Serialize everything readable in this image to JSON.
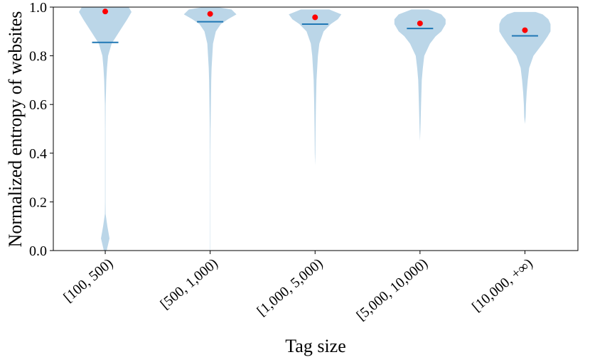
{
  "chart_data": {
    "type": "violin",
    "xlabel": "Tag size",
    "ylabel": "Normalized entropy of websites",
    "categories": [
      "[100, 500)",
      "[500, 1,000)",
      "[1,000, 5,000)",
      "[5,000, 10,000)",
      "[10,000, +∞)"
    ],
    "ylim": [
      0,
      1
    ],
    "yticks": [
      {
        "value": 0,
        "label": "0.0"
      },
      {
        "value": 0.2,
        "label": "0.2"
      },
      {
        "value": 0.4,
        "label": "0.4"
      },
      {
        "value": 0.6,
        "label": "0.6"
      },
      {
        "value": 0.8,
        "label": "0.8"
      },
      {
        "value": 1,
        "label": "1.0"
      }
    ],
    "body_color": "#1f77b4",
    "mean_color": "#1f77b4",
    "median_color": "#ff0000",
    "violins": [
      {
        "levels": [
          0,
          0.05,
          0.1,
          0.15,
          0.2,
          0.3,
          0.4,
          0.5,
          0.6,
          0.65,
          0.7,
          0.75,
          0.8,
          0.85,
          0.9,
          0.95,
          0.98,
          1.0
        ],
        "density": [
          2,
          6,
          3,
          0.5,
          0.3,
          0.3,
          0.3,
          0.3,
          0.5,
          1,
          1.5,
          2.5,
          4,
          9,
          20,
          31,
          37,
          33
        ],
        "mean": 0.855,
        "median": 0.982
      },
      {
        "levels": [
          0,
          0.2,
          0.4,
          0.5,
          0.6,
          0.7,
          0.75,
          0.8,
          0.85,
          0.9,
          0.93,
          0.95,
          0.97,
          0.99,
          1.0
        ],
        "density": [
          0.2,
          0.2,
          0.3,
          0.5,
          1,
          1.5,
          2,
          3,
          4,
          8,
          15,
          25,
          37,
          30,
          10
        ],
        "mean": 0.94,
        "median": 0.972
      },
      {
        "levels": [
          0.35,
          0.4,
          0.5,
          0.6,
          0.7,
          0.75,
          0.8,
          0.85,
          0.9,
          0.93,
          0.95,
          0.97,
          0.99
        ],
        "density": [
          0,
          0.4,
          0.7,
          1.2,
          2,
          3,
          4,
          6,
          12,
          22,
          32,
          37,
          20
        ],
        "mean": 0.93,
        "median": 0.958
      },
      {
        "levels": [
          0.45,
          0.5,
          0.6,
          0.7,
          0.75,
          0.8,
          0.85,
          0.88,
          0.9,
          0.93,
          0.95,
          0.97,
          0.99
        ],
        "density": [
          0,
          0.6,
          1.5,
          2.5,
          4,
          6,
          14,
          22,
          30,
          36,
          36,
          30,
          12
        ],
        "mean": 0.912,
        "median": 0.933
      },
      {
        "levels": [
          0.52,
          0.55,
          0.6,
          0.65,
          0.7,
          0.75,
          0.8,
          0.85,
          0.88,
          0.9,
          0.93,
          0.95,
          0.97,
          0.98
        ],
        "density": [
          0,
          1,
          1.5,
          2.5,
          4,
          6,
          12,
          25,
          32,
          36,
          36,
          33,
          25,
          15
        ],
        "mean": 0.882,
        "median": 0.905
      }
    ]
  }
}
